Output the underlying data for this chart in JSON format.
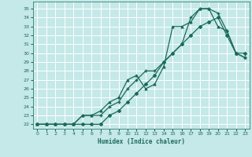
{
  "title": "",
  "xlabel": "Humidex (Indice chaleur)",
  "ylabel": "",
  "bg_color": "#c5e8e8",
  "grid_color": "#ffffff",
  "line_color": "#1a6b5a",
  "xlim": [
    -0.5,
    23.5
  ],
  "ylim": [
    21.5,
    35.8
  ],
  "xticks": [
    0,
    1,
    2,
    3,
    4,
    5,
    6,
    7,
    8,
    9,
    10,
    11,
    12,
    13,
    14,
    15,
    16,
    17,
    18,
    19,
    20,
    21,
    22,
    23
  ],
  "yticks": [
    22,
    23,
    24,
    25,
    26,
    27,
    28,
    29,
    30,
    31,
    32,
    33,
    34,
    35
  ],
  "series1_x": [
    0,
    1,
    2,
    3,
    4,
    5,
    6,
    7,
    8,
    9,
    10,
    11,
    12,
    13,
    14,
    15,
    16,
    17,
    18,
    19,
    20,
    21,
    22,
    23
  ],
  "series1_y": [
    22,
    22,
    22,
    22,
    22,
    22,
    22,
    22,
    23,
    23.5,
    24.5,
    25.5,
    26.5,
    27.5,
    29,
    30,
    31,
    32,
    33,
    33.5,
    34,
    32,
    30,
    30
  ],
  "series2_x": [
    0,
    1,
    2,
    3,
    4,
    5,
    6,
    7,
    8,
    9,
    10,
    11,
    12,
    13,
    14,
    15,
    16,
    17,
    18,
    19,
    20,
    21,
    22,
    23
  ],
  "series2_y": [
    22,
    22,
    22,
    22,
    22,
    23,
    23,
    23,
    24,
    24.5,
    26,
    27,
    28,
    28,
    29,
    30,
    31,
    34,
    35,
    35,
    34.5,
    32.5,
    30,
    29.5
  ],
  "series3_x": [
    0,
    1,
    2,
    3,
    4,
    5,
    6,
    7,
    8,
    9,
    10,
    11,
    12,
    13,
    14,
    15,
    16,
    17,
    18,
    19,
    20,
    21,
    22,
    23
  ],
  "series3_y": [
    22,
    22,
    22,
    22,
    22,
    23,
    23,
    23.5,
    24.5,
    25,
    27,
    27.5,
    26,
    26.5,
    28.5,
    33,
    33,
    33.5,
    35,
    35,
    33,
    32.5,
    30,
    29.5
  ]
}
